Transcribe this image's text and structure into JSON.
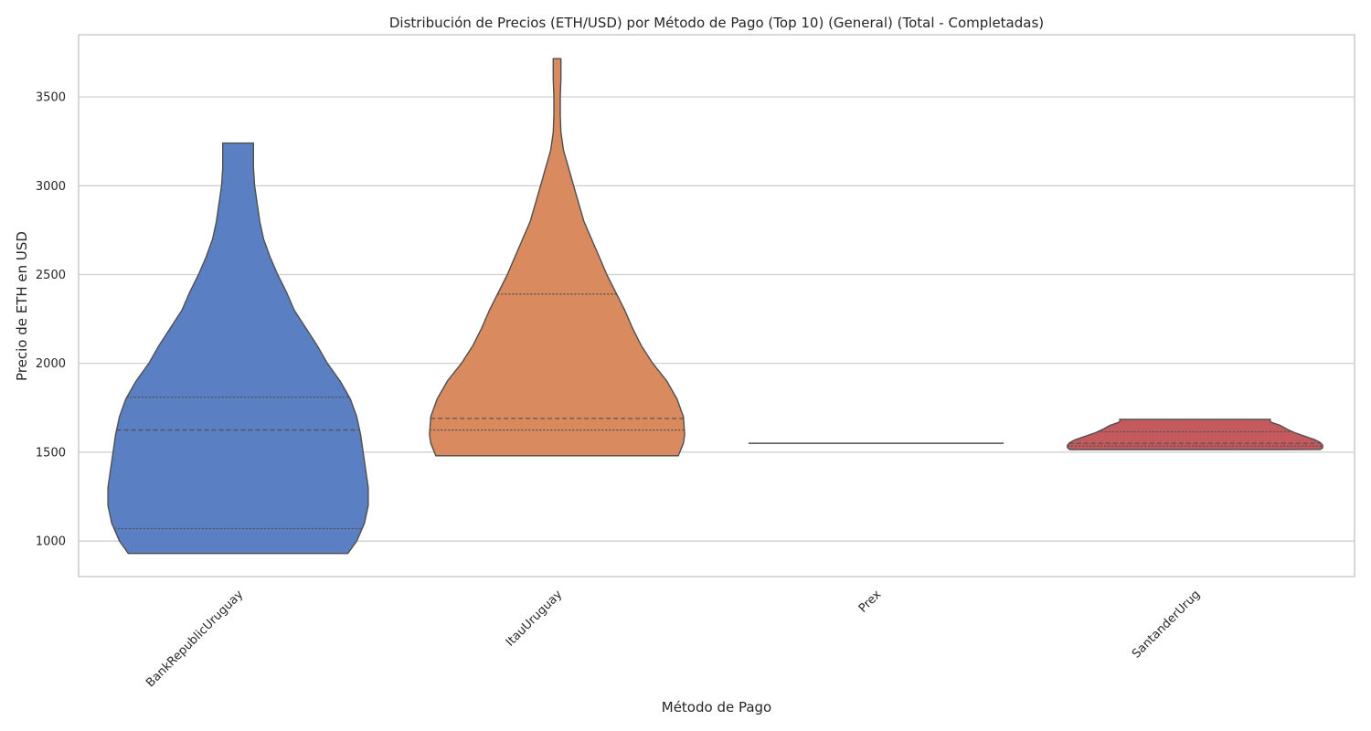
{
  "chart_data": {
    "type": "violin",
    "title": "Distribución de Precios (ETH/USD) por Método de Pago (Top 10) (General) (Total - Completadas)",
    "xlabel": "Método de Pago",
    "ylabel": "Precio de ETH en USD",
    "ylim": [
      800,
      3850
    ],
    "yticks": [
      1000,
      1500,
      2000,
      2500,
      3000,
      3500
    ],
    "grid": true,
    "categories": [
      "BankRepublicUruguay",
      "ItauUruguay",
      "Prex",
      "SantanderUrug"
    ],
    "colors": [
      "#5a7fc2",
      "#d98a5e",
      "#6aaa6e",
      "#c45a5e"
    ],
    "violins": [
      {
        "name": "BankRepublicUruguay",
        "min": 930,
        "max": 3240,
        "q1": 1070,
        "median": 1625,
        "q3": 1810,
        "density": [
          [
            930,
            0.86
          ],
          [
            1000,
            0.93
          ],
          [
            1100,
            0.99
          ],
          [
            1200,
            1.02
          ],
          [
            1300,
            1.02
          ],
          [
            1400,
            1.0
          ],
          [
            1500,
            0.98
          ],
          [
            1600,
            0.96
          ],
          [
            1700,
            0.93
          ],
          [
            1800,
            0.88
          ],
          [
            1900,
            0.8
          ],
          [
            2000,
            0.7
          ],
          [
            2100,
            0.62
          ],
          [
            2200,
            0.53
          ],
          [
            2300,
            0.44
          ],
          [
            2400,
            0.38
          ],
          [
            2500,
            0.31
          ],
          [
            2600,
            0.25
          ],
          [
            2700,
            0.2
          ],
          [
            2800,
            0.17
          ],
          [
            2900,
            0.15
          ],
          [
            3000,
            0.13
          ],
          [
            3100,
            0.12
          ],
          [
            3200,
            0.12
          ],
          [
            3240,
            0.12
          ]
        ]
      },
      {
        "name": "ItauUruguay",
        "min": 1480,
        "max": 3715,
        "q1": 1625,
        "median": 1690,
        "q3": 2390,
        "density": [
          [
            1480,
            0.95
          ],
          [
            1550,
            0.99
          ],
          [
            1600,
            1.0
          ],
          [
            1700,
            0.99
          ],
          [
            1800,
            0.94
          ],
          [
            1900,
            0.86
          ],
          [
            2000,
            0.75
          ],
          [
            2100,
            0.66
          ],
          [
            2200,
            0.59
          ],
          [
            2300,
            0.53
          ],
          [
            2400,
            0.46
          ],
          [
            2500,
            0.39
          ],
          [
            2600,
            0.33
          ],
          [
            2700,
            0.27
          ],
          [
            2800,
            0.21
          ],
          [
            2900,
            0.17
          ],
          [
            3000,
            0.13
          ],
          [
            3100,
            0.09
          ],
          [
            3200,
            0.05
          ],
          [
            3300,
            0.03
          ],
          [
            3400,
            0.025
          ],
          [
            3500,
            0.025
          ],
          [
            3600,
            0.03
          ],
          [
            3715,
            0.03
          ]
        ]
      },
      {
        "name": "Prex",
        "min": 1550,
        "max": 1550,
        "q1": 1550,
        "median": 1550,
        "q3": 1550,
        "density": []
      },
      {
        "name": "SantanderUrug",
        "min": 1515,
        "max": 1685,
        "q1": 1535,
        "median": 1550,
        "q3": 1615,
        "density": [
          [
            1515,
            0.98
          ],
          [
            1525,
            1.0
          ],
          [
            1540,
            1.0
          ],
          [
            1555,
            0.98
          ],
          [
            1570,
            0.94
          ],
          [
            1590,
            0.86
          ],
          [
            1610,
            0.78
          ],
          [
            1630,
            0.72
          ],
          [
            1650,
            0.67
          ],
          [
            1670,
            0.59
          ],
          [
            1685,
            0.59
          ]
        ]
      }
    ]
  }
}
